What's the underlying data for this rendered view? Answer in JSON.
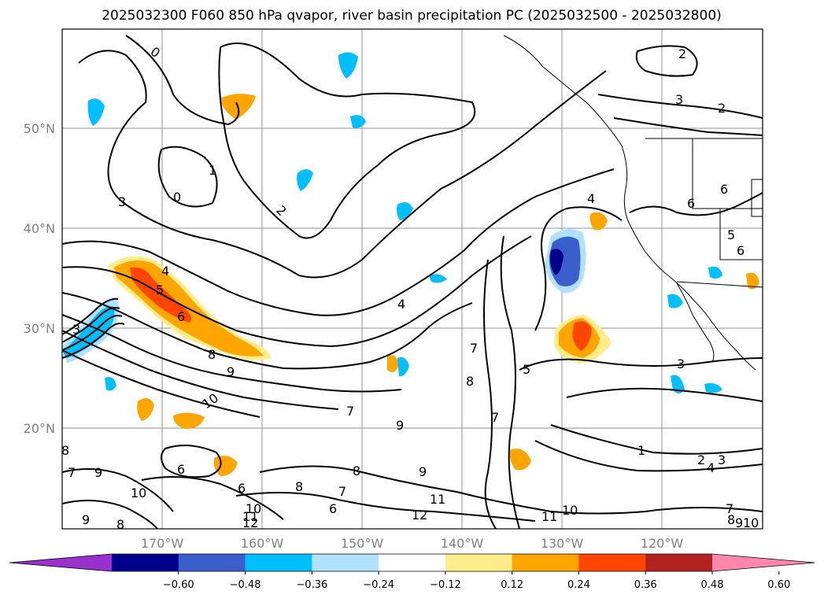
{
  "title": "2025032300 F060 850 hPa qvapor, river basin precipitation PC (2025032500 - 2025032800)",
  "lon_ticks": [
    "170°W",
    "160°W",
    "150°W",
    "140°W",
    "130°W",
    "120°W"
  ],
  "lat_ticks": [
    "50°N",
    "40°N",
    "30°N",
    "20°N"
  ],
  "colorbar": {
    "colors": [
      "#9932cc",
      "#00008b",
      "#3a5fcd",
      "#00bfff",
      "#b0e2ff",
      "#ffffff",
      "#ffec8b",
      "#ffa500",
      "#ff4500",
      "#b22222",
      "#ff88aa"
    ],
    "labels": [
      "−0.60",
      "−0.48",
      "−0.36",
      "−0.24",
      "−0.12",
      "0.12",
      "0.24",
      "0.36",
      "0.48",
      "0.60"
    ]
  },
  "contour_labels": [
    "0",
    "1",
    "2",
    "3",
    "4",
    "5",
    "6",
    "7",
    "8",
    "9",
    "10",
    "11",
    "12"
  ],
  "line_color": "#000000",
  "grid_color": "#808080"
}
